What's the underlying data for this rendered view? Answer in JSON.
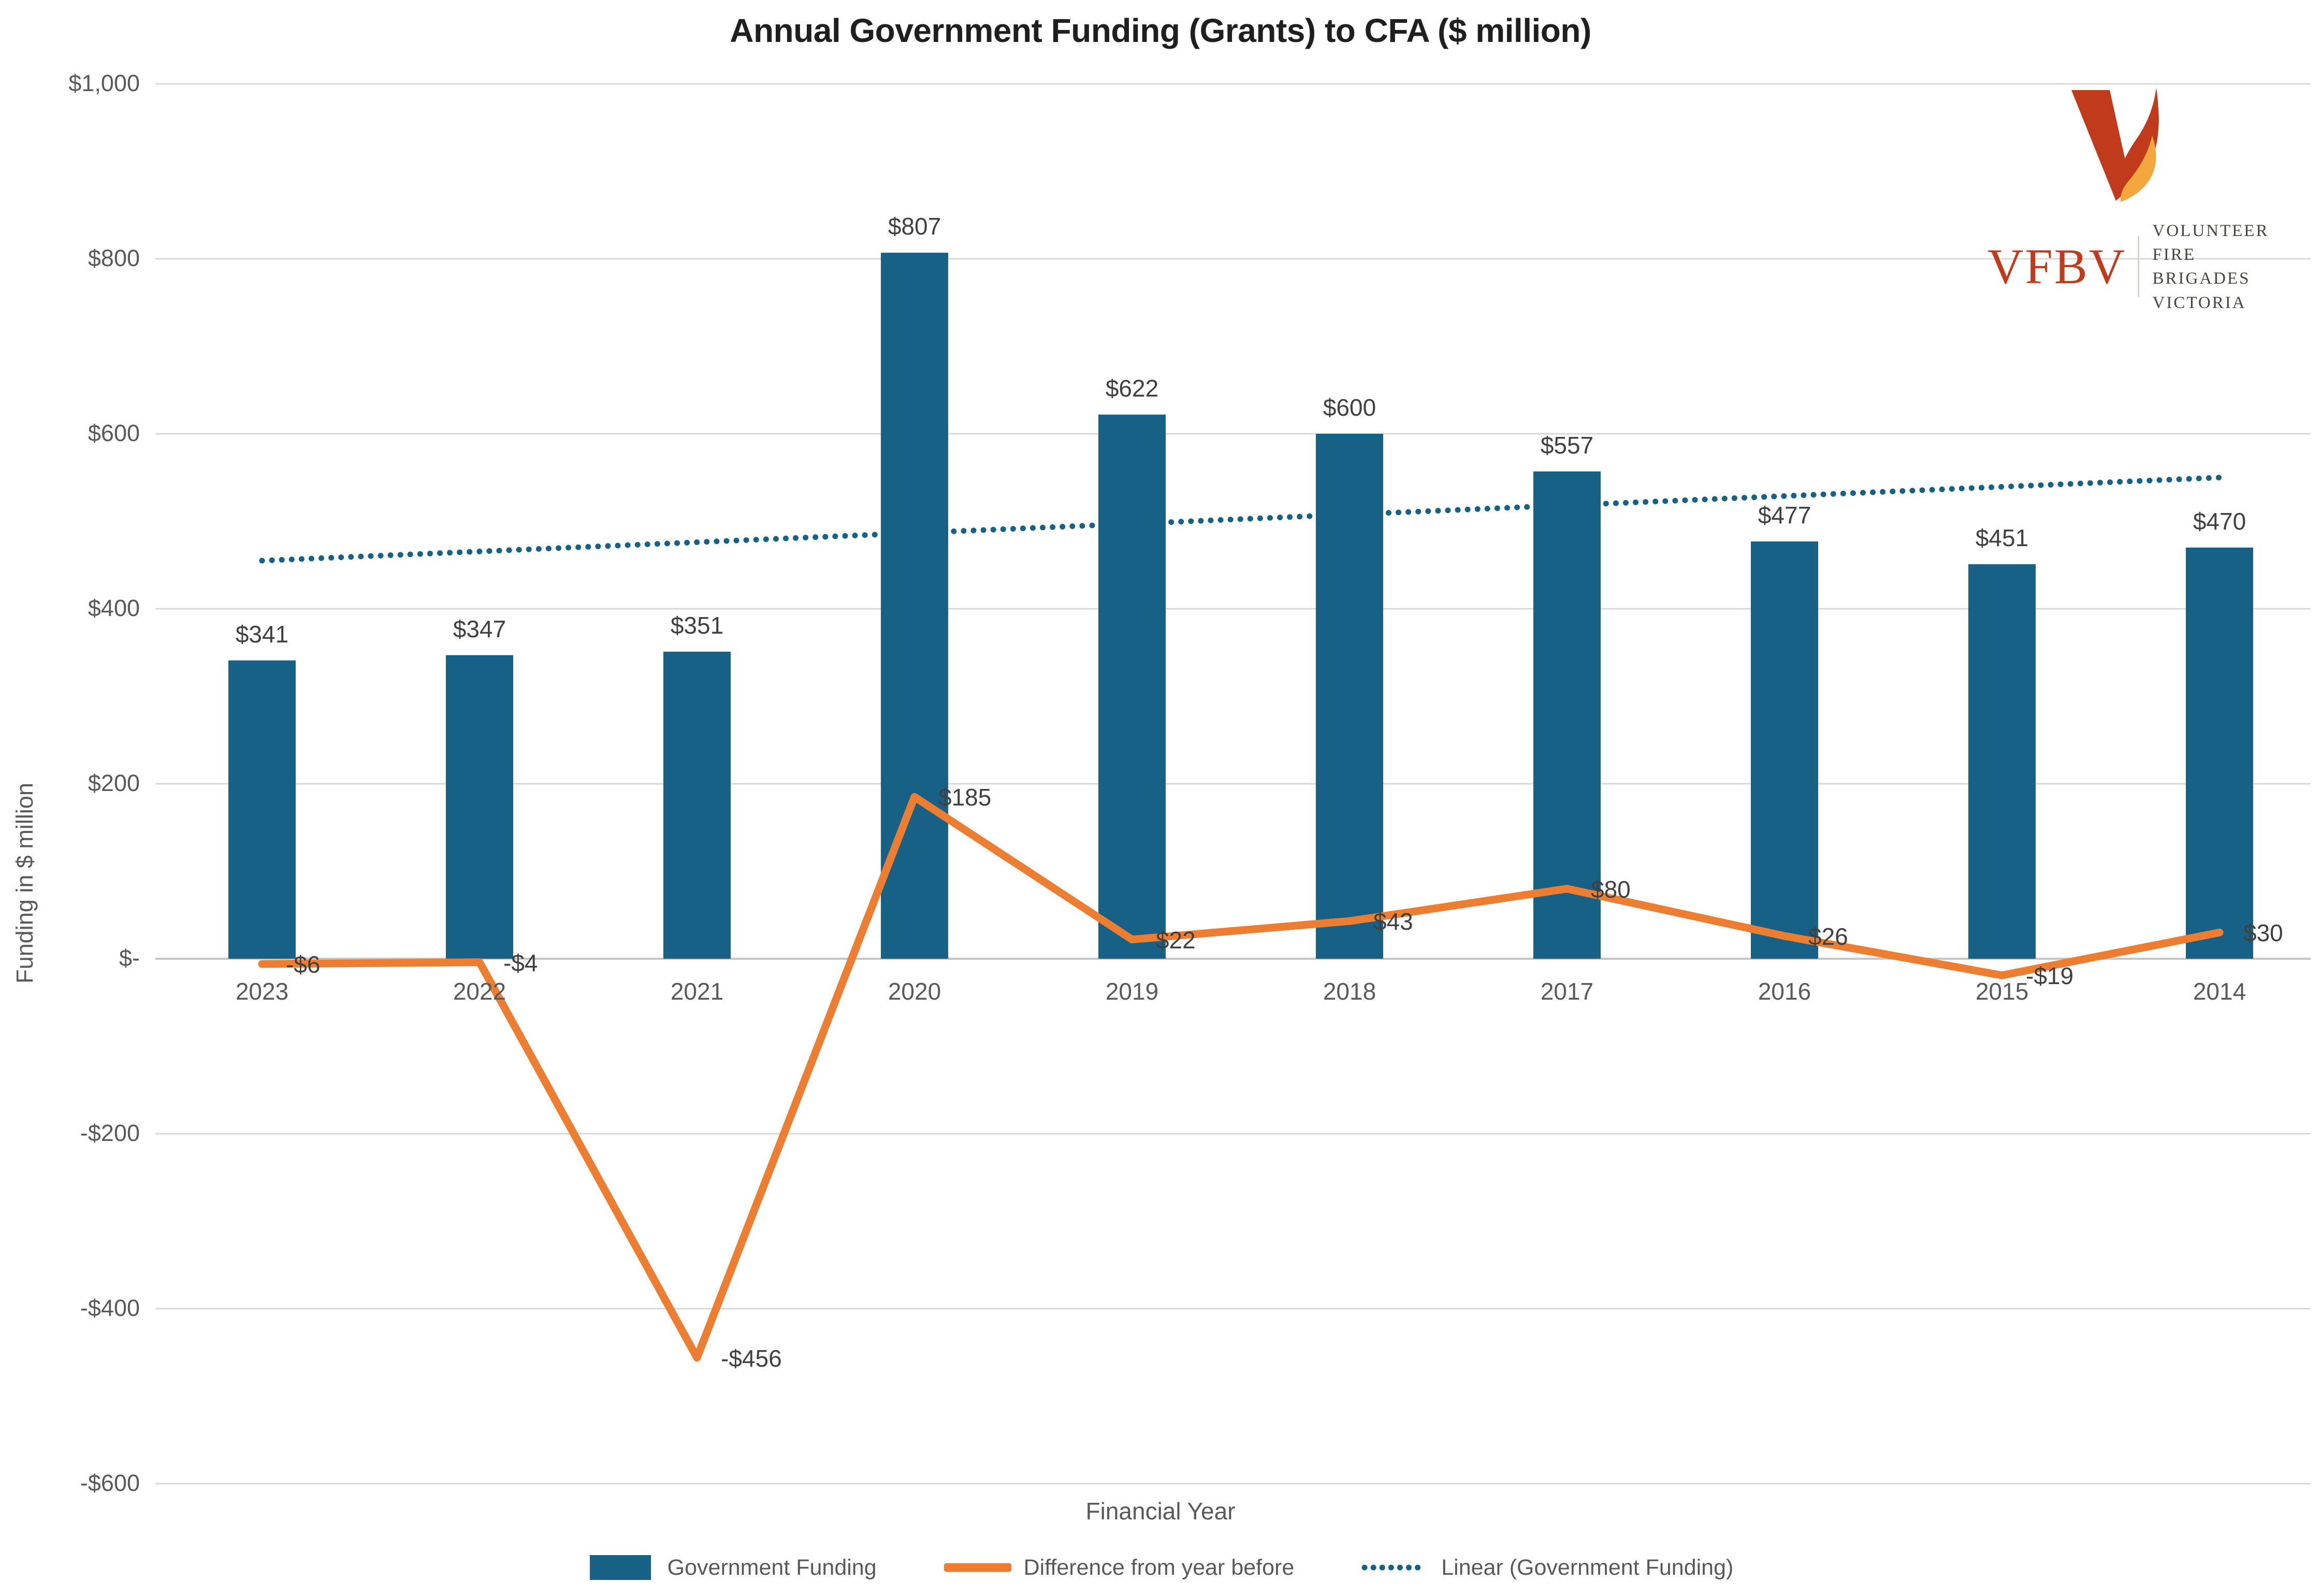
{
  "title": "Annual Government Funding (Grants) to CFA ($ million)",
  "logo": {
    "acronym": "VFBV",
    "line1": "VOLUNTEER FIRE",
    "line2": "BRIGADES VICTORIA",
    "red": "#c23a1c",
    "flame_orange": "#f4a73c",
    "gray": "#45443e"
  },
  "colors": {
    "grid": "#d9d9d9",
    "zero_axis": "#c6c6c6",
    "tick_text": "#595959",
    "label_text": "#404040",
    "title_text": "#1f1f1f"
  },
  "chart_data": {
    "type": "bar",
    "subtype": "bar+line combo with linear trendline",
    "title": "Annual Government Funding (Grants) to CFA ($ million)",
    "xlabel": "Financial Year",
    "ylabel": "Funding in $ million",
    "ylim": [
      -600,
      1000
    ],
    "ytick_step": 200,
    "ytick_values": [
      1000,
      800,
      600,
      400,
      200,
      0,
      -200,
      -400,
      -600
    ],
    "ytick_labels": [
      "$1,000",
      "$800",
      "$600",
      "$400",
      "$200",
      "$-",
      "-$200",
      "-$400",
      "-$600"
    ],
    "grid": true,
    "legend_position": "bottom",
    "categories": [
      "2023",
      "2022",
      "2021",
      "2020",
      "2019",
      "2018",
      "2017",
      "2016",
      "2015",
      "2014"
    ],
    "series": [
      {
        "name": "Government Funding",
        "type": "bar",
        "color": "#166185",
        "values": [
          341,
          347,
          351,
          807,
          622,
          600,
          557,
          477,
          451,
          470
        ],
        "labels": [
          "$341",
          "$347",
          "$351",
          "$807",
          "$622",
          "$600",
          "$557",
          "$477",
          "$451",
          "$470"
        ]
      },
      {
        "name": "Difference from year before",
        "type": "line",
        "color": "#ed7d31",
        "values": [
          -6,
          -4,
          -456,
          185,
          22,
          43,
          80,
          26,
          -19,
          30
        ],
        "labels": [
          "-$6",
          "-$4",
          "-$456",
          "$185",
          "$22",
          "$43",
          "$80",
          "$26",
          "-$19",
          "$30"
        ]
      },
      {
        "name": "Linear (Government Funding)",
        "type": "trendline",
        "style": "dotted",
        "color": "#166185",
        "start_value": 455,
        "end_value": 550
      }
    ]
  }
}
